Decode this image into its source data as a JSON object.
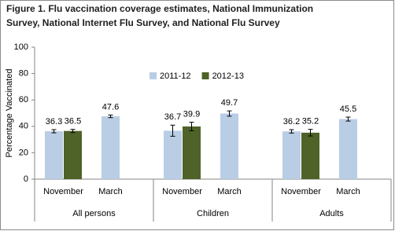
{
  "chart_data": {
    "type": "bar",
    "title": [
      "Figure 1. Flu vaccination  coverage estimates, National Immunization",
      "Survey, National Internet Flu Survey, and National Flu Survey"
    ],
    "y_label": "Percentage Vaccinated",
    "groups": [
      "All persons",
      "Children",
      "Adults"
    ],
    "categories": [
      "November",
      "March",
      "November",
      "March",
      "November",
      "March"
    ],
    "series": [
      {
        "name": "2011-12",
        "color": "#b9cde5",
        "values": [
          36.3,
          47.6,
          36.7,
          49.7,
          36.2,
          45.5
        ],
        "errors": [
          1.2,
          1.0,
          4.2,
          2.0,
          1.3,
          1.5
        ]
      },
      {
        "name": "2012-13",
        "color": "#4f6228",
        "values": [
          36.5,
          null,
          39.9,
          null,
          35.2,
          null
        ],
        "errors": [
          1.2,
          null,
          3.2,
          null,
          2.5,
          null
        ]
      }
    ],
    "ylim": [
      0,
      100
    ],
    "yticks": [
      0,
      20,
      40,
      60,
      80,
      100
    ],
    "legend": "top"
  }
}
